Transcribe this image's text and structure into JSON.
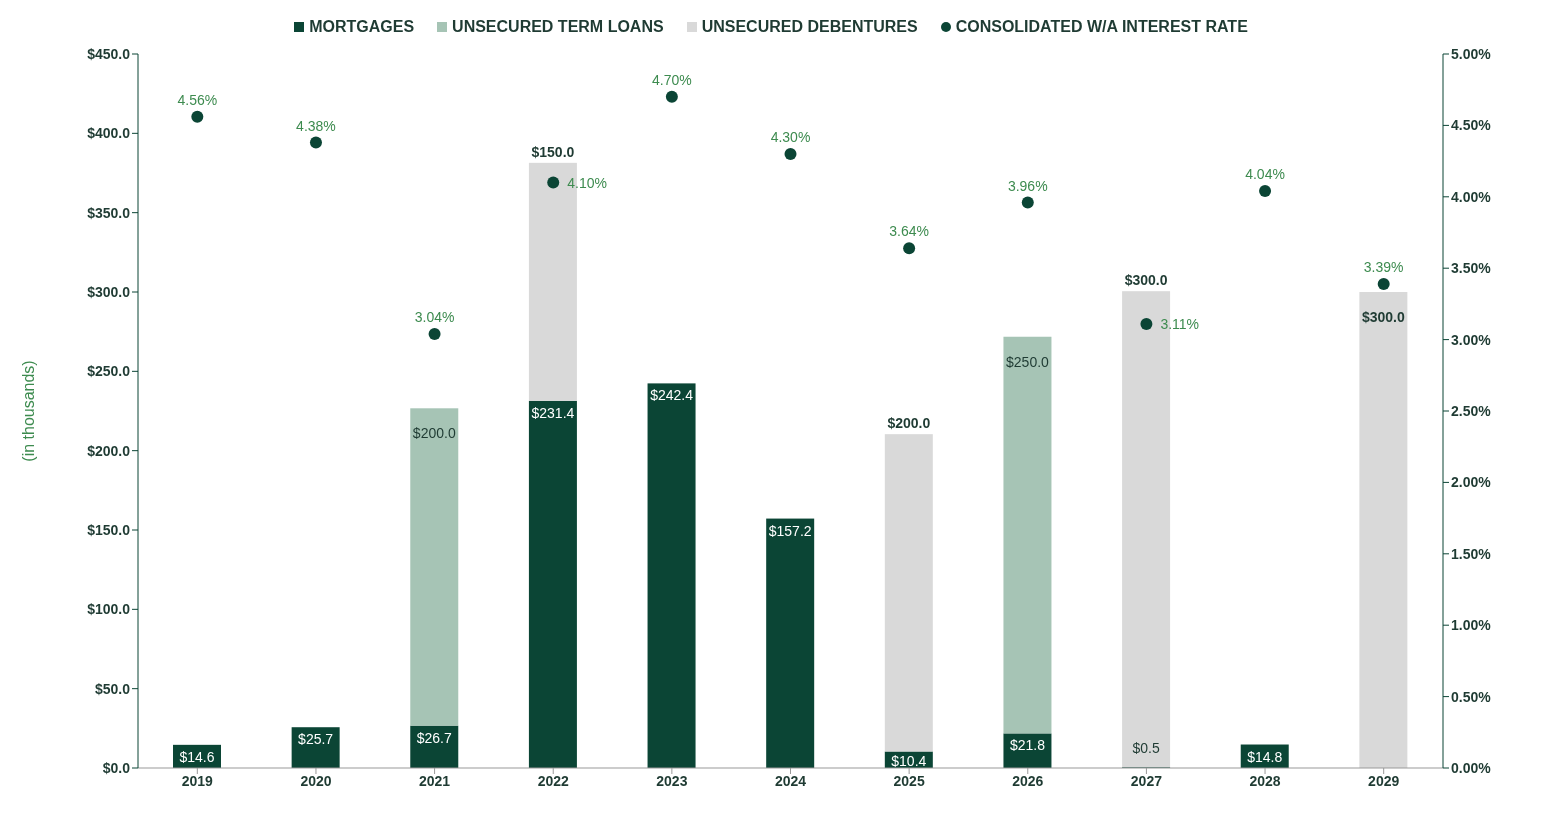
{
  "chart_data": {
    "type": "bar",
    "stacked": true,
    "ylabel": "(in thousands)",
    "categories": [
      "2019",
      "2020",
      "2021",
      "2022",
      "2023",
      "2024",
      "2025",
      "2026",
      "2027",
      "2028",
      "2029"
    ],
    "series": [
      {
        "name": "MORTGAGES",
        "color": "#0b4535",
        "values": [
          14.6,
          25.7,
          26.7,
          231.4,
          242.4,
          157.2,
          10.4,
          21.8,
          0.5,
          14.8,
          null
        ],
        "value_labels": [
          "$14.6",
          "$25.7",
          "$26.7",
          "$231.4",
          "$242.4",
          "$157.2",
          "$10.4",
          "$21.8",
          "$0.5",
          "$14.8",
          null
        ]
      },
      {
        "name": "UNSECURED TERM LOANS",
        "color": "#a6c4b5",
        "values": [
          null,
          null,
          200.0,
          null,
          null,
          null,
          null,
          250.0,
          null,
          null,
          null
        ],
        "value_labels": [
          null,
          null,
          "$200.0",
          null,
          null,
          null,
          null,
          "$250.0",
          null,
          null,
          null
        ]
      },
      {
        "name": "UNSECURED DEBENTURES",
        "color": "#d9d9d9",
        "values": [
          null,
          null,
          null,
          150.0,
          null,
          null,
          200.0,
          null,
          300.0,
          null,
          300.0
        ],
        "value_labels": [
          null,
          null,
          null,
          "$150.0",
          null,
          null,
          "$200.0",
          null,
          "$300.0",
          null,
          "$300.0"
        ]
      },
      {
        "name": "CONSOLIDATED W/A INTEREST RATE",
        "type": "scatter",
        "axis": "y2",
        "marker": "circle",
        "color": "#0b4535",
        "values": [
          4.56,
          4.38,
          3.04,
          4.1,
          4.7,
          4.3,
          3.64,
          3.96,
          3.11,
          4.04,
          3.39
        ],
        "value_labels": [
          "4.56%",
          "4.38%",
          "3.04%",
          "4.10%",
          "4.70%",
          "4.30%",
          "3.64%",
          "3.96%",
          "3.11%",
          "4.04%",
          "3.39%"
        ]
      }
    ],
    "ylim": [
      0,
      450
    ],
    "yticks": [
      {
        "value": 0,
        "label": "$0.0"
      },
      {
        "value": 50,
        "label": "$50.0"
      },
      {
        "value": 100,
        "label": "$100.0"
      },
      {
        "value": 150,
        "label": "$150.0"
      },
      {
        "value": 200,
        "label": "$200.0"
      },
      {
        "value": 250,
        "label": "$250.0"
      },
      {
        "value": 300,
        "label": "$300.0"
      },
      {
        "value": 350,
        "label": "$350.0"
      },
      {
        "value": 400,
        "label": "$400.0"
      },
      {
        "value": 450,
        "label": "$450.0"
      }
    ],
    "y2lim": [
      0,
      5
    ],
    "y2ticks": [
      {
        "value": 0,
        "label": "0.00%"
      },
      {
        "value": 0.5,
        "label": "0.50%"
      },
      {
        "value": 1,
        "label": "1.00%"
      },
      {
        "value": 1.5,
        "label": "1.50%"
      },
      {
        "value": 2,
        "label": "2.00%"
      },
      {
        "value": 2.5,
        "label": "2.50%"
      },
      {
        "value": 3,
        "label": "3.00%"
      },
      {
        "value": 3.5,
        "label": "3.50%"
      },
      {
        "value": 4,
        "label": "4.00%"
      },
      {
        "value": 4.5,
        "label": "4.50%"
      },
      {
        "value": 5,
        "label": "5.00%"
      }
    ],
    "grid": false,
    "legend": "top"
  }
}
